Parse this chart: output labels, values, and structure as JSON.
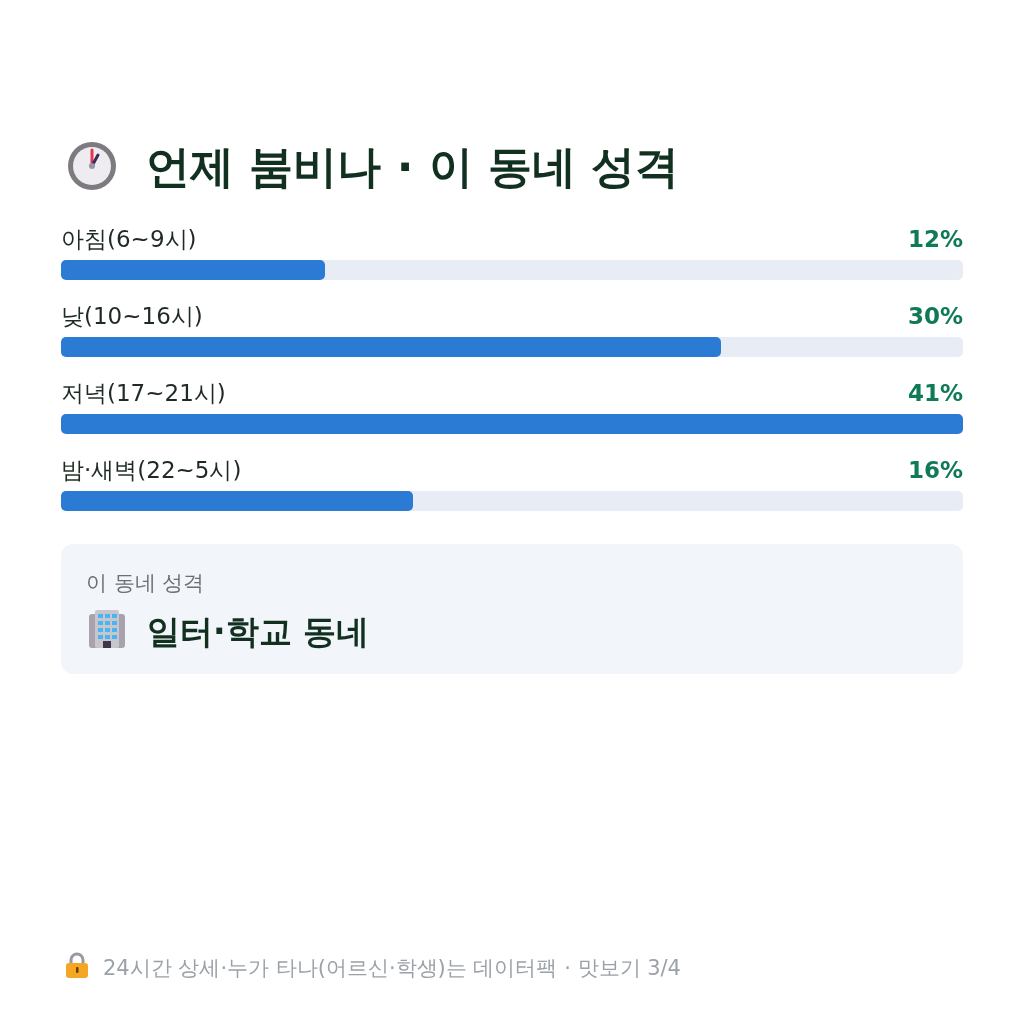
{
  "chart_data": [
    {
      "type": "bar",
      "orientation": "horizontal",
      "title": "언제 붐비나 · 이 동네 성격",
      "categories": [
        "아침(6~9시)",
        "낮(10~16시)",
        "저녁(17~21시)",
        "밤·새벽(22~5시)"
      ],
      "values": [
        12,
        30,
        41,
        16
      ],
      "value_labels": [
        "12%",
        "30%",
        "41%",
        "16%"
      ],
      "color": "#2b7bd4",
      "annotations": [
        "24시간 상세·누가 타나(어르신·학생)는 데이터팩 · 맛보기 3/4"
      ]
    },
    {
      "type": "other",
      "subtitle": "이 동네 성격",
      "title": "일터·학교 동네"
    }
  ]
}
